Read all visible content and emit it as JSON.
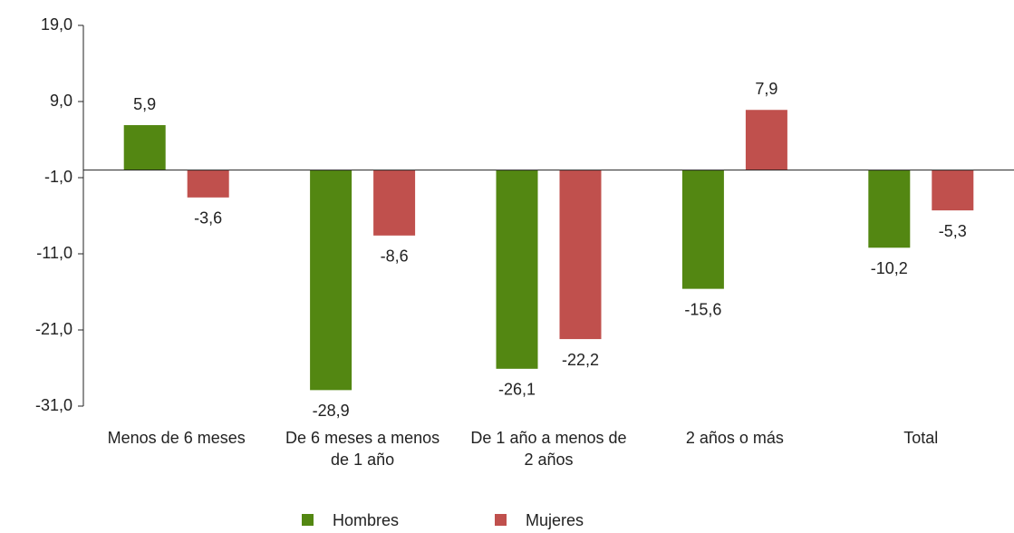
{
  "chart_data": {
    "type": "bar",
    "categories": [
      "Menos de 6 meses",
      "De 6 meses a menos de 1 año",
      "De 1 año a menos de 2 años",
      "2 años o más",
      "Total"
    ],
    "series": [
      {
        "name": "Hombres",
        "color": "#538712",
        "values": [
          5.9,
          -28.9,
          -26.1,
          -15.6,
          -10.2
        ],
        "value_labels": [
          "5,9",
          "-28,9",
          "-26,1",
          "-15,6",
          "-10,2"
        ]
      },
      {
        "name": "Mujeres",
        "color": "#c0504d",
        "values": [
          -3.6,
          -8.6,
          -22.2,
          7.9,
          -5.3
        ],
        "value_labels": [
          "-3,6",
          "-8,6",
          "-22,2",
          "7,9",
          "-5,3"
        ]
      }
    ],
    "ylim": [
      -31,
      19
    ],
    "yticks": [
      {
        "value": 19,
        "label": "19,0"
      },
      {
        "value": 9,
        "label": "9,0"
      },
      {
        "value": -1,
        "label": "-1,0"
      },
      {
        "value": -11,
        "label": "-11,0"
      },
      {
        "value": -21,
        "label": "-21,0"
      },
      {
        "value": -31,
        "label": "-31,0"
      }
    ],
    "grid": false,
    "legend": "bottom"
  }
}
